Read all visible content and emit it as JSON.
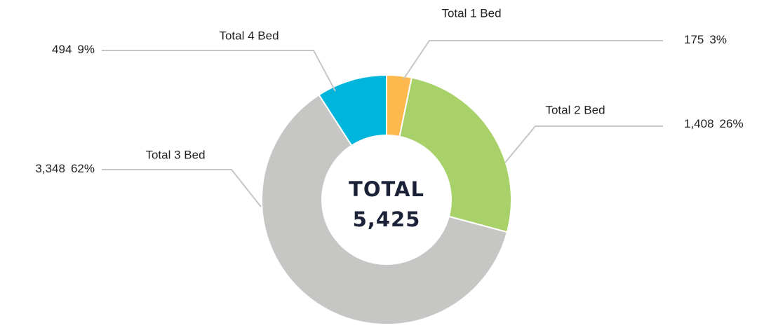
{
  "chart_data": {
    "type": "donut",
    "categories": [
      "Total 1 Bed",
      "Total 2 Bed",
      "Total 3 Bed",
      "Total 4 Bed"
    ],
    "values": [
      175,
      1408,
      3348,
      494
    ],
    "value_labels": [
      "175",
      "1,408",
      "3,348",
      "494"
    ],
    "percent_labels": [
      "3%",
      "26%",
      "62%",
      "9%"
    ],
    "colors": [
      "#fdb94e",
      "#a8d16a",
      "#c6c6c4",
      "#00b5dc"
    ],
    "center_title": "TOTAL",
    "center_value_label": "5,425"
  }
}
